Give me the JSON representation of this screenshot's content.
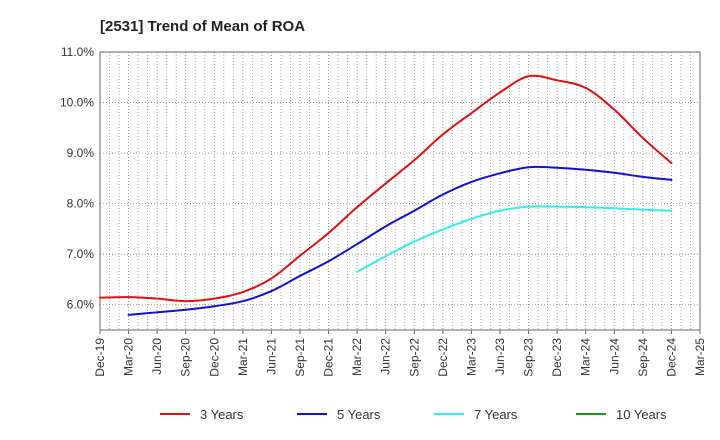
{
  "chart_data": {
    "type": "line",
    "title": "[2531]  Trend of Mean of ROA",
    "xlabel": "",
    "ylabel": "",
    "ylim": [
      5.5,
      11.0
    ],
    "yticks": [
      6.0,
      7.0,
      8.0,
      9.0,
      10.0,
      11.0
    ],
    "ytick_labels": [
      "6.0%",
      "7.0%",
      "8.0%",
      "9.0%",
      "10.0%",
      "11.0%"
    ],
    "grid": true,
    "legend_position": "bottom",
    "categories": [
      "Dec-19",
      "Mar-20",
      "Jun-20",
      "Sep-20",
      "Dec-20",
      "Mar-21",
      "Jun-21",
      "Sep-21",
      "Dec-21",
      "Mar-22",
      "Jun-22",
      "Sep-22",
      "Dec-22",
      "Mar-23",
      "Jun-23",
      "Sep-23",
      "Dec-23",
      "Mar-24",
      "Jun-24",
      "Sep-24",
      "Dec-24",
      "Mar-25"
    ],
    "series": [
      {
        "name": "3 Years",
        "color": "#dd1111",
        "values": [
          6.14,
          6.15,
          6.12,
          6.07,
          6.12,
          6.25,
          6.52,
          6.97,
          7.42,
          7.93,
          8.4,
          8.86,
          9.37,
          9.79,
          10.2,
          10.52,
          10.44,
          10.29,
          9.86,
          9.3,
          8.8,
          null
        ]
      },
      {
        "name": "5 Years",
        "color": "#1111cc",
        "values": [
          null,
          5.8,
          5.85,
          5.9,
          5.97,
          6.07,
          6.27,
          6.57,
          6.86,
          7.2,
          7.55,
          7.86,
          8.18,
          8.43,
          8.6,
          8.72,
          8.71,
          8.67,
          8.61,
          8.53,
          8.47,
          null
        ]
      },
      {
        "name": "7 Years",
        "color": "#33eeee",
        "values": [
          null,
          null,
          null,
          null,
          null,
          null,
          null,
          null,
          null,
          6.65,
          6.96,
          7.25,
          7.49,
          7.7,
          7.86,
          7.94,
          7.94,
          7.93,
          7.91,
          7.88,
          7.86,
          null
        ]
      },
      {
        "name": "10 Years",
        "color": "#119911",
        "values": [
          null,
          null,
          null,
          null,
          null,
          null,
          null,
          null,
          null,
          null,
          null,
          null,
          null,
          null,
          null,
          null,
          null,
          null,
          null,
          null,
          null,
          null
        ]
      }
    ]
  }
}
